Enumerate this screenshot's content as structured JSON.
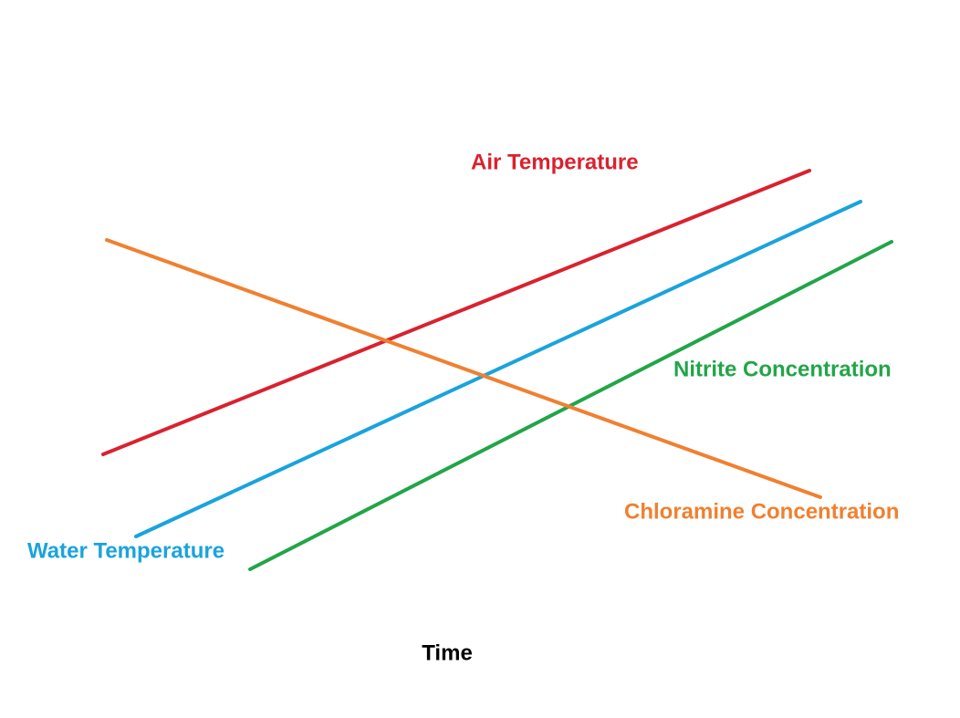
{
  "diagram": {
    "labels": [
      "Air Temperature",
      "Water Temperature",
      "Nitrite Concentration",
      "Chloramine Concentration"
    ],
    "x_axis_label": "Time"
  }
}
